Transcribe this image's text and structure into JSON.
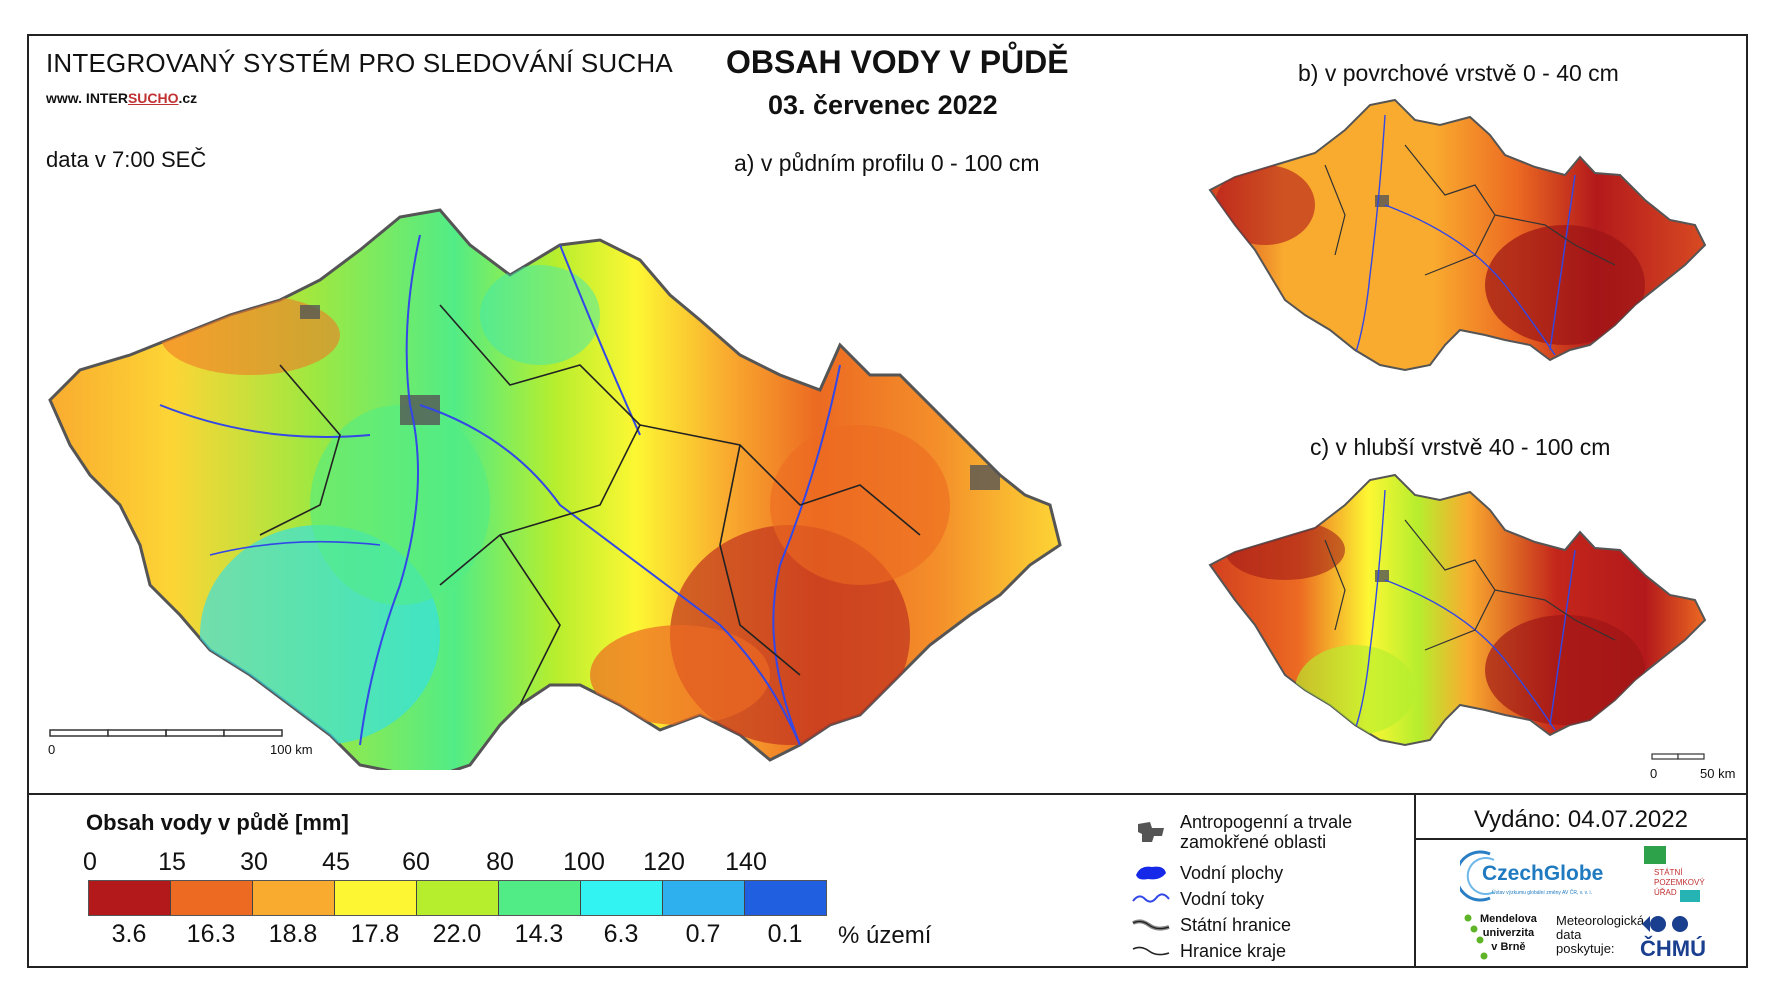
{
  "header": {
    "system_title": "INTEGROVANÝ SYSTÉM PRO SLEDOVÁNÍ SUCHA",
    "website_prefix": "www. INTER",
    "website_highlight": "SUCHO",
    "website_suffix": ".cz",
    "data_time": "data v 7:00 SEČ",
    "main_title": "OBSAH VODY V PŮDĚ",
    "date": "03. červenec 2022"
  },
  "panels": {
    "a": {
      "title": "a) v půdním profilu 0 - 100 cm"
    },
    "b": {
      "title": "b) v povrchové vrstvě 0 - 40 cm"
    },
    "c": {
      "title": "c) v hlubší vrstvě 40 - 100 cm"
    }
  },
  "scale_main": {
    "start": "0",
    "end": "100 km"
  },
  "scale_small": {
    "start": "0",
    "end": "50 km"
  },
  "legend": {
    "title": "Obsah vody v půdě  [mm]",
    "ticks": [
      "0",
      "15",
      "30",
      "45",
      "60",
      "80",
      "100",
      "120",
      "140"
    ],
    "colors": [
      "#b3191b",
      "#ec6a22",
      "#f9ab2f",
      "#fdf733",
      "#b6ee2e",
      "#52ec86",
      "#33f2f2",
      "#2eafee",
      "#1f5fe0"
    ],
    "percentages": [
      "3.6",
      "16.3",
      "18.8",
      "17.8",
      "22.0",
      "14.3",
      "6.3",
      "0.7",
      "0.1"
    ],
    "percent_unit": "% území"
  },
  "symbols": [
    {
      "icon": "urban-area-icon",
      "label_line1": "Antropogenní a trvale",
      "label_line2": "zamokřené oblasti"
    },
    {
      "icon": "water-body-icon",
      "label_line1": "Vodní plochy",
      "label_line2": ""
    },
    {
      "icon": "river-icon",
      "label_line1": "Vodní toky",
      "label_line2": ""
    },
    {
      "icon": "state-border-icon",
      "label_line1": "Státní hranice",
      "label_line2": ""
    },
    {
      "icon": "region-border-icon",
      "label_line1": "Hranice kraje",
      "label_line2": ""
    }
  ],
  "issued": "Vydáno: 04.07.2022",
  "logos": {
    "czechglobe": "CzechGlobe",
    "czechglobe_sub": "Ústav výzkumu globální změny AV ČR, v. v. i.",
    "spu_line1": "STÁTNÍ",
    "spu_line2": "POZEMKOVÝ",
    "spu_line3": "ÚŘAD",
    "mendelu_line1": "Mendelova",
    "mendelu_line2": "univerzita",
    "mendelu_line3": "v Brně",
    "chmu_text_line1": "Meteorologická",
    "chmu_text_line2": "data",
    "chmu_text_line3": "poskytuje:",
    "chmu": "ČHMÚ"
  }
}
